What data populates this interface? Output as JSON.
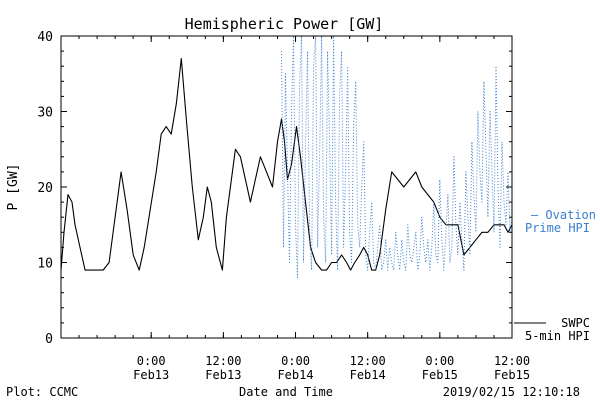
{
  "chart_data": {
    "type": "line",
    "title": "Hemispheric Power [GW]",
    "xlabel": "Date and Time",
    "ylabel": "P [GW]",
    "ylim": [
      0,
      40
    ],
    "xlim": [
      "2019-02-12T09:00",
      "2019-02-15T12:00"
    ],
    "y_ticks": [
      0,
      10,
      20,
      30,
      40
    ],
    "x_ticks": [
      {
        "t": "2019-02-13T00:00",
        "line1": "0:00",
        "line2": "Feb13"
      },
      {
        "t": "2019-02-13T12:00",
        "line1": "12:00",
        "line2": "Feb13"
      },
      {
        "t": "2019-02-14T00:00",
        "line1": "0:00",
        "line2": "Feb14"
      },
      {
        "t": "2019-02-14T12:00",
        "line1": "12:00",
        "line2": "Feb14"
      },
      {
        "t": "2019-02-15T00:00",
        "line1": "0:00",
        "line2": "Feb15"
      },
      {
        "t": "2019-02-15T12:00",
        "line1": "12:00",
        "line2": "Feb15"
      }
    ],
    "grid": false,
    "legend_position": "right",
    "series": [
      {
        "name": "SWPC 5-min HPI",
        "color": "#000000",
        "style": "solid",
        "x": [
          "2019-02-12T09:00",
          "2019-02-12T09:30",
          "2019-02-12T10:10",
          "2019-02-12T10:50",
          "2019-02-12T11:20",
          "2019-02-12T12:10",
          "2019-02-12T13:00",
          "2019-02-12T14:00",
          "2019-02-12T15:00",
          "2019-02-12T16:00",
          "2019-02-12T17:00",
          "2019-02-12T18:00",
          "2019-02-12T19:00",
          "2019-02-12T20:00",
          "2019-02-12T21:00",
          "2019-02-12T22:00",
          "2019-02-12T22:50",
          "2019-02-12T23:50",
          "2019-02-13T00:50",
          "2019-02-13T01:40",
          "2019-02-13T02:30",
          "2019-02-13T03:20",
          "2019-02-13T04:10",
          "2019-02-13T05:00",
          "2019-02-13T05:50",
          "2019-02-13T06:50",
          "2019-02-13T07:50",
          "2019-02-13T08:40",
          "2019-02-13T09:20",
          "2019-02-13T10:00",
          "2019-02-13T10:50",
          "2019-02-13T11:50",
          "2019-02-13T12:30",
          "2019-02-13T13:10",
          "2019-02-13T14:00",
          "2019-02-13T14:50",
          "2019-02-13T15:40",
          "2019-02-13T16:30",
          "2019-02-13T17:20",
          "2019-02-13T18:10",
          "2019-02-13T19:10",
          "2019-02-13T20:10",
          "2019-02-13T21:00",
          "2019-02-13T21:40",
          "2019-02-13T22:10",
          "2019-02-13T22:40",
          "2019-02-13T23:20",
          "2019-02-14T00:10",
          "2019-02-14T00:50",
          "2019-02-14T01:40",
          "2019-02-14T02:30",
          "2019-02-14T03:20",
          "2019-02-14T04:20",
          "2019-02-14T05:10",
          "2019-02-14T06:00",
          "2019-02-14T06:50",
          "2019-02-14T07:40",
          "2019-02-14T08:30",
          "2019-02-14T09:10",
          "2019-02-14T09:50",
          "2019-02-14T10:40",
          "2019-02-14T11:20",
          "2019-02-14T12:00",
          "2019-02-14T12:40",
          "2019-02-14T13:20",
          "2019-02-14T14:00",
          "2019-02-14T15:00",
          "2019-02-14T16:00",
          "2019-02-14T17:00",
          "2019-02-14T18:00",
          "2019-02-14T19:00",
          "2019-02-14T20:00",
          "2019-02-14T21:00",
          "2019-02-14T22:00",
          "2019-02-14T23:00",
          "2019-02-15T00:00",
          "2019-02-15T01:00",
          "2019-02-15T02:00",
          "2019-02-15T03:00",
          "2019-02-15T04:00",
          "2019-02-15T05:00",
          "2019-02-15T06:00",
          "2019-02-15T07:00",
          "2019-02-15T08:00",
          "2019-02-15T09:00",
          "2019-02-15T10:00",
          "2019-02-15T10:40",
          "2019-02-15T11:20",
          "2019-02-15T12:00"
        ],
        "y": [
          9,
          14,
          19,
          18,
          15,
          12,
          9,
          9,
          9,
          9,
          10,
          16,
          22,
          17,
          11,
          9,
          12,
          17,
          22,
          27,
          28,
          27,
          31,
          37,
          29,
          20,
          13,
          16,
          20,
          18,
          12,
          9,
          16,
          20,
          25,
          24,
          21,
          18,
          21,
          24,
          22,
          20,
          26,
          29,
          26,
          21,
          23,
          28,
          24,
          18,
          12,
          10,
          9,
          9,
          10,
          10,
          11,
          10,
          9,
          10,
          11,
          12,
          11,
          9,
          9,
          11,
          17,
          22,
          21,
          20,
          21,
          22,
          20,
          19,
          18,
          16,
          15,
          15,
          15,
          11,
          12,
          13,
          14,
          14,
          15,
          15,
          15,
          14,
          15
        ]
      },
      {
        "name": "Ovation Prime HPI",
        "color": "#3a7fd0",
        "style": "dotted",
        "x": [
          "2019-02-13T21:40",
          "2019-02-13T22:00",
          "2019-02-13T22:20",
          "2019-02-13T22:40",
          "2019-02-13T23:00",
          "2019-02-13T23:20",
          "2019-02-13T23:40",
          "2019-02-14T00:00",
          "2019-02-14T00:20",
          "2019-02-14T00:40",
          "2019-02-14T01:00",
          "2019-02-14T01:20",
          "2019-02-14T01:40",
          "2019-02-14T02:00",
          "2019-02-14T02:20",
          "2019-02-14T02:40",
          "2019-02-14T03:00",
          "2019-02-14T03:20",
          "2019-02-14T03:40",
          "2019-02-14T04:00",
          "2019-02-14T04:20",
          "2019-02-14T04:40",
          "2019-02-14T05:00",
          "2019-02-14T05:20",
          "2019-02-14T05:40",
          "2019-02-14T06:00",
          "2019-02-14T06:20",
          "2019-02-14T06:40",
          "2019-02-14T07:00",
          "2019-02-14T07:20",
          "2019-02-14T07:40",
          "2019-02-14T08:00",
          "2019-02-14T08:20",
          "2019-02-14T08:40",
          "2019-02-14T09:00",
          "2019-02-14T09:20",
          "2019-02-14T09:40",
          "2019-02-14T10:00",
          "2019-02-14T10:20",
          "2019-02-14T10:40",
          "2019-02-14T11:00",
          "2019-02-14T11:20",
          "2019-02-14T11:40",
          "2019-02-14T12:00",
          "2019-02-14T12:20",
          "2019-02-14T12:40",
          "2019-02-14T13:00",
          "2019-02-14T13:20",
          "2019-02-14T13:40",
          "2019-02-14T14:00",
          "2019-02-14T14:20",
          "2019-02-14T14:40",
          "2019-02-14T15:00",
          "2019-02-14T15:20",
          "2019-02-14T15:40",
          "2019-02-14T16:00",
          "2019-02-14T16:20",
          "2019-02-14T16:40",
          "2019-02-14T17:00",
          "2019-02-14T17:20",
          "2019-02-14T17:40",
          "2019-02-14T18:00",
          "2019-02-14T18:20",
          "2019-02-14T18:40",
          "2019-02-14T19:00",
          "2019-02-14T19:20",
          "2019-02-14T19:40",
          "2019-02-14T20:00",
          "2019-02-14T20:20",
          "2019-02-14T20:40",
          "2019-02-14T21:00",
          "2019-02-14T21:20",
          "2019-02-14T21:40",
          "2019-02-14T22:00",
          "2019-02-14T22:20",
          "2019-02-14T22:40",
          "2019-02-14T23:00",
          "2019-02-14T23:20",
          "2019-02-14T23:40",
          "2019-02-15T00:00",
          "2019-02-15T00:20",
          "2019-02-15T00:40",
          "2019-02-15T01:00",
          "2019-02-15T01:20",
          "2019-02-15T01:40",
          "2019-02-15T02:00",
          "2019-02-15T02:20",
          "2019-02-15T02:40",
          "2019-02-15T03:00",
          "2019-02-15T03:20",
          "2019-02-15T03:40",
          "2019-02-15T04:00",
          "2019-02-15T04:20",
          "2019-02-15T04:40",
          "2019-02-15T05:00",
          "2019-02-15T05:20",
          "2019-02-15T05:40",
          "2019-02-15T06:00",
          "2019-02-15T06:20",
          "2019-02-15T06:40",
          "2019-02-15T07:00",
          "2019-02-15T07:20",
          "2019-02-15T07:40",
          "2019-02-15T08:00",
          "2019-02-15T08:20",
          "2019-02-15T08:40",
          "2019-02-15T09:00",
          "2019-02-15T09:20",
          "2019-02-15T09:40",
          "2019-02-15T10:00",
          "2019-02-15T10:20",
          "2019-02-15T10:40",
          "2019-02-15T11:00",
          "2019-02-15T11:20",
          "2019-02-15T11:40",
          "2019-02-15T12:00"
        ],
        "y": [
          38,
          12,
          35,
          22,
          10,
          30,
          40,
          15,
          8,
          33,
          40,
          10,
          25,
          38,
          14,
          9,
          36,
          40,
          12,
          24,
          40,
          16,
          10,
          38,
          26,
          11,
          40,
          18,
          9,
          32,
          38,
          12,
          22,
          36,
          14,
          10,
          28,
          34,
          15,
          12,
          20,
          26,
          11,
          9,
          14,
          18,
          10,
          9,
          12,
          15,
          9,
          10,
          13,
          9,
          12,
          10,
          9,
          14,
          11,
          9,
          13,
          10,
          9,
          15,
          11,
          10,
          12,
          14,
          9,
          11,
          16,
          12,
          10,
          13,
          9,
          12,
          18,
          11,
          10,
          21,
          13,
          9,
          14,
          19,
          10,
          12,
          24,
          15,
          11,
          18,
          13,
          9,
          22,
          16,
          11,
          26,
          19,
          14,
          30,
          22,
          18,
          34,
          25,
          16,
          30,
          22,
          14,
          36,
          20,
          12,
          26,
          18,
          15,
          22,
          14,
          16
        ]
      }
    ]
  },
  "legend": {
    "ovation_line1": "— Ovation",
    "ovation_line2": "Prime HPI",
    "swpc_line1": "SWPC",
    "swpc_line2": "5-min HPI"
  },
  "footer": {
    "plot_source": "Plot: CCMC",
    "timestamp": "2019/02/15 12:10:18"
  },
  "colors": {
    "swpc": "#000000",
    "ovation": "#3a7fd0",
    "axis": "#000000",
    "text": "#000000"
  }
}
